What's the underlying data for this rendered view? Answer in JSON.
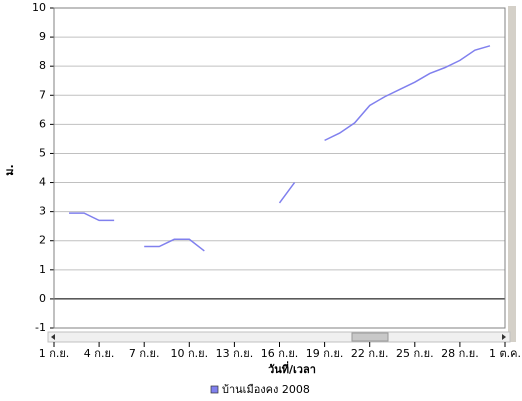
{
  "chart_data": {
    "type": "line",
    "x_label": "วันที่/เวลา",
    "y_label": "ม.",
    "x": [
      2,
      3,
      4,
      5,
      6,
      7,
      8,
      9,
      10,
      11,
      12,
      13,
      14,
      15,
      16,
      17,
      18,
      19,
      20,
      21,
      22,
      23,
      24,
      25,
      26,
      27,
      28,
      29,
      30
    ],
    "series": [
      {
        "name": "บ้านเมืองคง 2008",
        "color": "#8080ee",
        "values": [
          2.95,
          2.95,
          2.7,
          2.7,
          null,
          1.8,
          1.8,
          2.05,
          2.05,
          1.65,
          null,
          null,
          null,
          null,
          3.3,
          4.0,
          null,
          5.45,
          5.7,
          6.05,
          6.65,
          6.95,
          7.2,
          7.45,
          7.75,
          7.95,
          8.2,
          8.55,
          8.7
        ]
      }
    ],
    "xlim": [
      1,
      31
    ],
    "xticks": [
      {
        "value": 1,
        "label": "1 ก.ย."
      },
      {
        "value": 4,
        "label": "4 ก.ย."
      },
      {
        "value": 7,
        "label": "7 ก.ย."
      },
      {
        "value": 10,
        "label": "10 ก.ย."
      },
      {
        "value": 13,
        "label": "13 ก.ย."
      },
      {
        "value": 16,
        "label": "16 ก.ย."
      },
      {
        "value": 19,
        "label": "19 ก.ย."
      },
      {
        "value": 22,
        "label": "22 ก.ย."
      },
      {
        "value": 25,
        "label": "25 ก.ย."
      },
      {
        "value": 28,
        "label": "28 ก.ย."
      },
      {
        "value": 31,
        "label": "1 ต.ค."
      }
    ],
    "ylim": [
      -1,
      10
    ],
    "yticks": [
      -1,
      0,
      1,
      2,
      3,
      4,
      5,
      6,
      7,
      8,
      9,
      10
    ],
    "grid": true
  }
}
